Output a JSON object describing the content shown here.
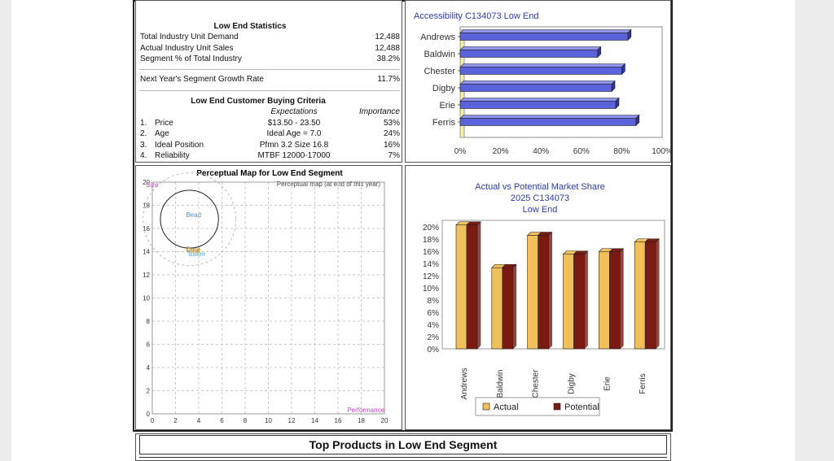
{
  "stats": {
    "title": "Low End Statistics",
    "rows": [
      {
        "label": "Total Industry Unit Demand",
        "value": "12,488"
      },
      {
        "label": "Actual Industry Unit Sales",
        "value": "12,488"
      },
      {
        "label": "Segment % of Total Industry",
        "value": "38.2%"
      }
    ],
    "growth_label": "Next Year's Segment Growth Rate",
    "growth_value": "11.7%"
  },
  "criteria": {
    "title": "Low End Customer Buying Criteria",
    "expectations_header": "Expectations",
    "importance_header": "Importance",
    "rows": [
      {
        "num": "1.",
        "name": "Price",
        "expectation": "$13.50 - 23.50",
        "importance": "53%"
      },
      {
        "num": "2.",
        "name": "Age",
        "expectation": "Ideal Age = 7.0",
        "importance": "24%"
      },
      {
        "num": "3.",
        "name": "Ideal Position",
        "expectation": "Pfmn 3.2 Size 16.8",
        "importance": "16%"
      },
      {
        "num": "4.",
        "name": "Reliability",
        "expectation": "MTBF 12000-17000",
        "importance": "7%"
      }
    ]
  },
  "chart_data": [
    {
      "type": "bar",
      "orientation": "horizontal",
      "title": "Accessibility C134073 Low End",
      "categories": [
        "Andrews",
        "Baldwin",
        "Chester",
        "Digby",
        "Erie",
        "Ferris"
      ],
      "values": [
        83,
        68,
        80,
        75,
        77,
        87
      ],
      "xlim": [
        0,
        100
      ],
      "xticks": [
        "0%",
        "20%",
        "40%",
        "60%",
        "80%",
        "100%"
      ],
      "colors": {
        "bar": "#5b63dc",
        "bar_top": "#8f95ec",
        "bar_side": "#2f3590",
        "floor": "#f4f1a0"
      }
    },
    {
      "type": "scatter",
      "title": "Perceptual Map for Low End Segment",
      "subtitle": "Perceptual map (at end of this year)",
      "xlabel": "Performance",
      "ylabel": "Size",
      "xlim": [
        0,
        20
      ],
      "ylim": [
        0,
        20
      ],
      "xticks": [
        "0",
        "2",
        "4",
        "6",
        "8",
        "10",
        "12",
        "14",
        "16",
        "18",
        "20"
      ],
      "yticks": [
        "0",
        "2",
        "4",
        "6",
        "8",
        "10",
        "12",
        "14",
        "16",
        "18",
        "20"
      ],
      "circles": [
        {
          "x": 3.2,
          "y": 16.8,
          "inner_r": 2.5,
          "outer_r": 4.0
        }
      ],
      "points": [
        {
          "label": "Bead",
          "x": 2.9,
          "y": 17.0,
          "color": "#4a8fd6"
        },
        {
          "label": "Baker",
          "x": 3.1,
          "y": 13.6,
          "color": "#4ab0d9"
        },
        {
          "label": "Dixie",
          "x": 2.9,
          "y": 14.0,
          "color": "#b07030"
        },
        {
          "label": "Feat",
          "x": 3.0,
          "y": 13.9,
          "color": "#c7a020"
        }
      ],
      "colors": {
        "axis_label": "#d040c0",
        "grid": "#c8c8c8"
      }
    },
    {
      "type": "bar",
      "title": "Actual vs Potential Market Share",
      "subtitle": "2025 C134073",
      "subtitle2": "Low End",
      "categories": [
        "Andrews",
        "Baldwin",
        "Chester",
        "Digby",
        "Erie",
        "Ferris"
      ],
      "series": [
        {
          "name": "Actual",
          "values": [
            20.3,
            13.3,
            18.6,
            15.5,
            15.9,
            17.5
          ],
          "color": "#f2c05a"
        },
        {
          "name": "Potential",
          "values": [
            20.3,
            13.3,
            18.6,
            15.5,
            15.9,
            17.5
          ],
          "color": "#7a1a10"
        }
      ],
      "ylim": [
        0,
        20
      ],
      "yticks": [
        "0%",
        "2%",
        "4%",
        "6%",
        "8%",
        "10%",
        "12%",
        "14%",
        "16%",
        "18%",
        "20%"
      ]
    }
  ],
  "top_products": {
    "title": "Top Products in Low End Segment"
  }
}
